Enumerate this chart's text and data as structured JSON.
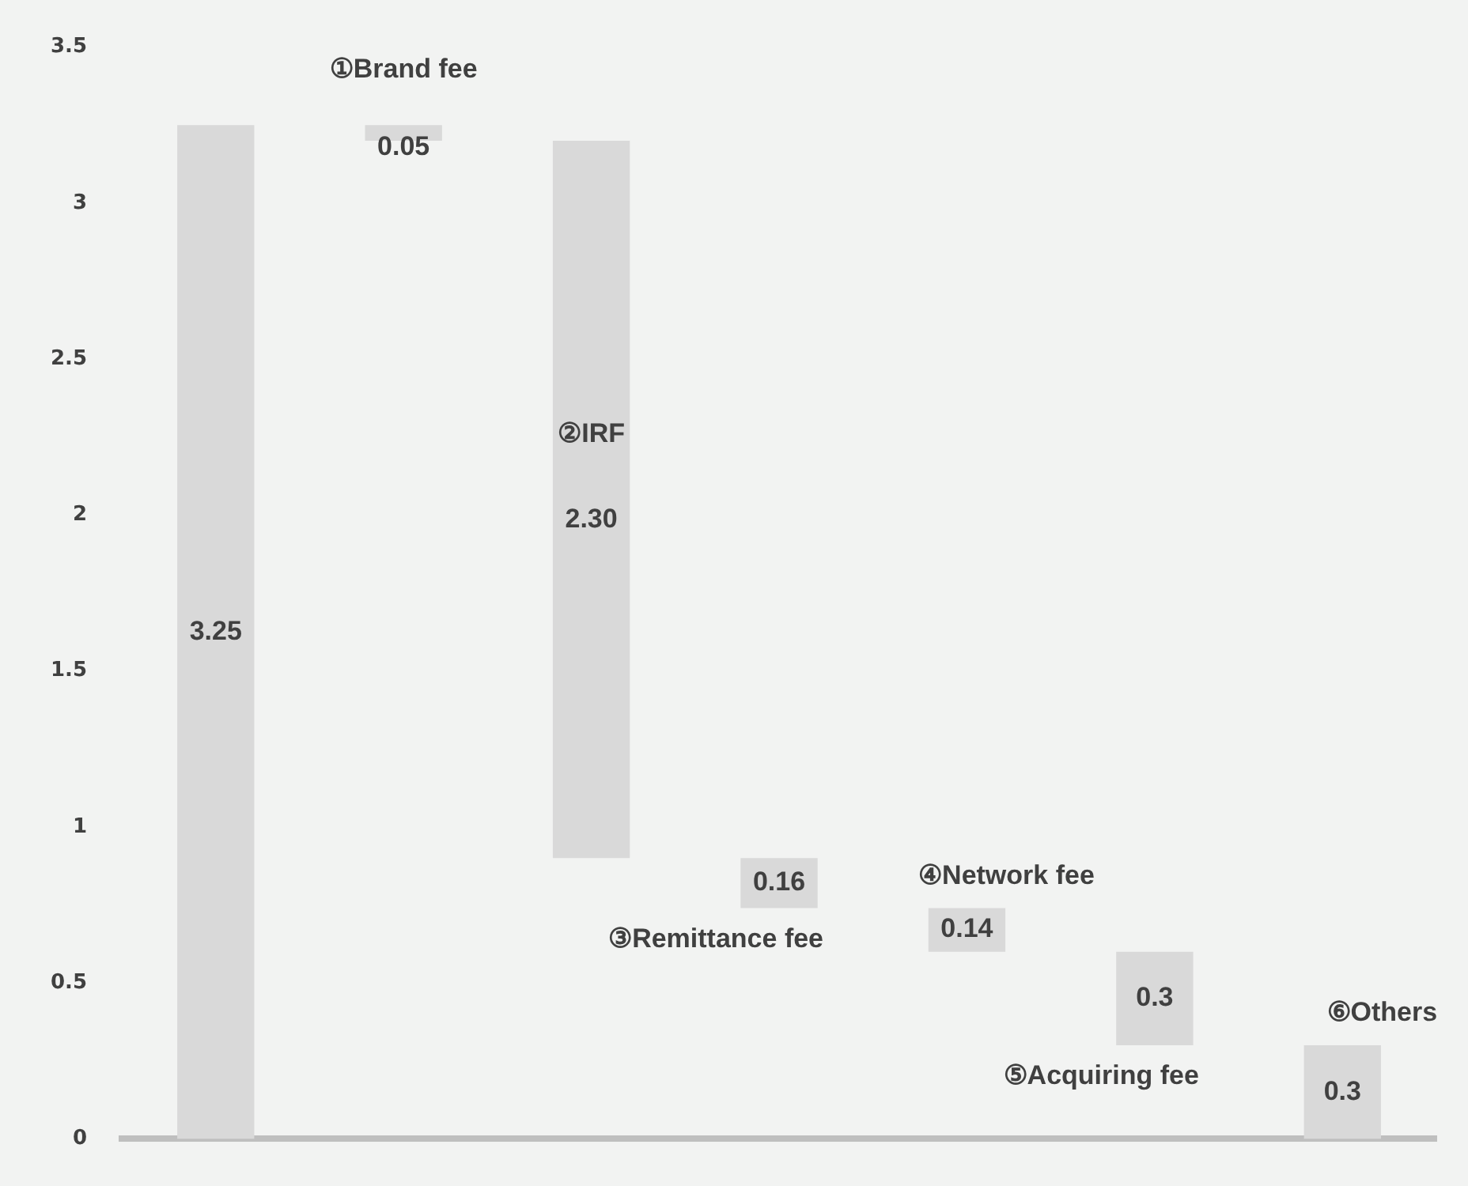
{
  "chart_data": {
    "type": "bar",
    "categories": [
      null,
      "①Brand fee",
      "②IRF",
      "③Remittance fee",
      "④Network fee",
      "⑤Acquiring fee",
      "⑥Others"
    ],
    "values": [
      3.25,
      0.05,
      2.3,
      0.16,
      0.14,
      0.3,
      0.3
    ],
    "base": [
      0,
      3.2,
      0.9,
      0.74,
      0.6,
      0.3,
      0
    ],
    "value_labels": [
      "3.25",
      "0.05",
      "2.30",
      "0.16",
      "0.14",
      "0.3",
      "0.3"
    ],
    "color": "#d9d9d9",
    "ylim": [
      0,
      3.5
    ],
    "yticks": [
      0,
      0.5,
      1,
      1.5,
      2,
      2.5,
      3,
      3.5
    ],
    "grid": false,
    "legend": false
  }
}
